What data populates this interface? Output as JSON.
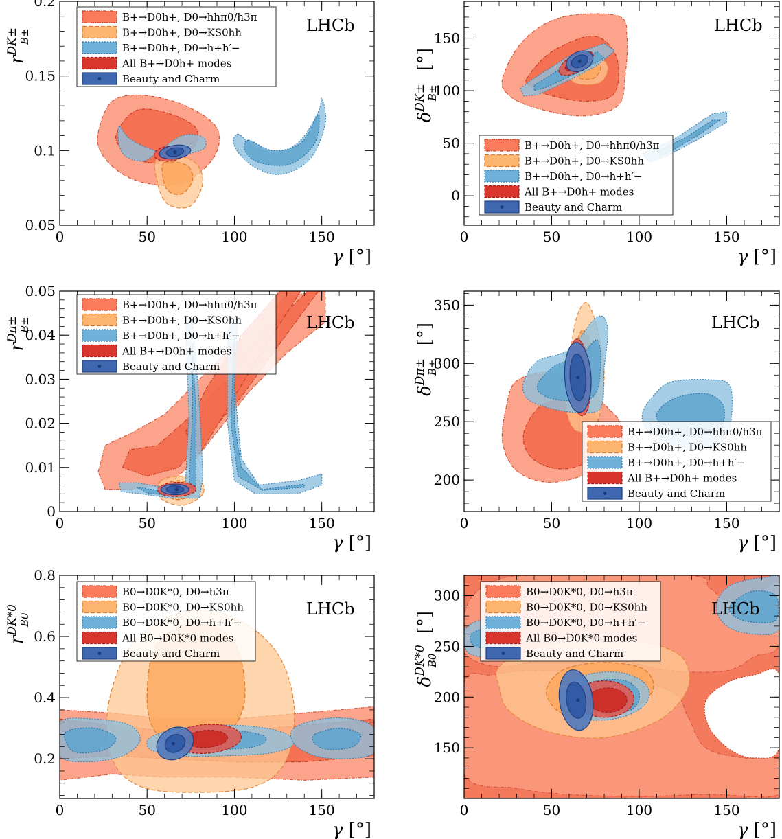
{
  "colors": {
    "red_light": "#fb9a7e",
    "red_dark": "#f36b4d",
    "orange_light": "#fec791",
    "orange_dark": "#fda75c",
    "blue_light": "#8fc1df",
    "blue_dark": "#5fa4cf",
    "crimson_light": "#e4574d",
    "crimson_dark": "#cc2a24",
    "navy_light": "#5279bd",
    "navy_dark": "#2f5aa4",
    "legend_red": "#fa7a5c",
    "legend_orange": "#fdb46f",
    "legend_blue": "#6eb0d7",
    "legend_crimson": "#d8352d",
    "legend_navy": "#3f68b0"
  },
  "chart_data": [
    {
      "type": "contour",
      "experiment_label": "LHCb",
      "xlabel": "γ [°]",
      "ylabel": "r_{B±}^{DK±}",
      "xlim": [
        0,
        180
      ],
      "ylim": [
        0.05,
        0.2
      ],
      "xticks": [
        "0",
        "50",
        "100",
        "150"
      ],
      "yticks": [
        "0.05",
        "0.1",
        "0.15",
        "0.2"
      ],
      "legend_position": "top-left",
      "legend": [
        "B+→D0h+, D0→hhπ0/h3π",
        "B+→D0h+, D0→KS0hh",
        "B+→D0h+, D0→h+h′−",
        "All B+→D0h+ modes",
        "Beauty and Charm"
      ],
      "best_fit": {
        "gamma": 66,
        "value": 0.099
      }
    },
    {
      "type": "contour",
      "experiment_label": "LHCb",
      "xlabel": "γ [°]",
      "ylabel": "δ_{B±}^{DK±} [°]",
      "xlim": [
        0,
        180
      ],
      "ylim": [
        -28,
        185
      ],
      "xticks": [
        "0",
        "50",
        "100",
        "150"
      ],
      "yticks": [
        "0",
        "50",
        "100",
        "150"
      ],
      "legend_position": "bottom-center",
      "legend": [
        "B+→D0h+, D0→hhπ0/h3π",
        "B+→D0h+, D0→KS0hh",
        "B+→D0h+, D0→h+h′−",
        "All B+→D0h+ modes",
        "Beauty and Charm"
      ],
      "best_fit": {
        "gamma": 66,
        "value": 128
      }
    },
    {
      "type": "contour",
      "experiment_label": "LHCb",
      "xlabel": "γ [°]",
      "ylabel": "r_{B±}^{Dπ±}",
      "xlim": [
        0,
        180
      ],
      "ylim": [
        0,
        0.05
      ],
      "xticks": [
        "0",
        "50",
        "100",
        "150"
      ],
      "yticks": [
        "0",
        "0.01",
        "0.02",
        "0.03",
        "0.04",
        "0.05"
      ],
      "legend_position": "top-left",
      "legend": [
        "B+→D0h+, D0→hhπ0/h3π",
        "B+→D0h+, D0→KS0hh",
        "B+→D0h+, D0→h+h′−",
        "All B+→D0h+ modes",
        "Beauty and Charm"
      ],
      "best_fit": {
        "gamma": 67,
        "value": 0.005
      }
    },
    {
      "type": "contour",
      "experiment_label": "LHCb",
      "xlabel": "γ [°]",
      "ylabel": "δ_{B±}^{Dπ±} [°]",
      "xlim": [
        0,
        180
      ],
      "ylim": [
        173,
        362
      ],
      "xticks": [
        "0",
        "50",
        "100",
        "150"
      ],
      "yticks": [
        "200",
        "250",
        "300",
        "350"
      ],
      "legend_position": "bottom-right",
      "legend": [
        "B+→D0h+, D0→hhπ0/h3π",
        "B+→D0h+, D0→KS0hh",
        "B+→D0h+, D0→h+h′−",
        "All B+→D0h+ modes",
        "Beauty and Charm"
      ],
      "best_fit": {
        "gamma": 65,
        "value": 288
      }
    },
    {
      "type": "contour",
      "experiment_label": "LHCb",
      "xlabel": "γ [°]",
      "ylabel": "r_{B0}^{DK*0}",
      "xlim": [
        0,
        180
      ],
      "ylim": [
        0.07,
        0.8
      ],
      "xticks": [
        "0",
        "50",
        "100",
        "150"
      ],
      "yticks": [
        "0.2",
        "0.4",
        "0.6",
        "0.8"
      ],
      "legend_position": "top-left",
      "legend": [
        "B0→D0K*0, D0→h3π",
        "B0→D0K*0, D0→KS0hh",
        "B0→D0K*0, D0→h+h′−",
        "All B0→D0K*0 modes",
        "Beauty and Charm"
      ],
      "best_fit": {
        "gamma": 65,
        "value": 0.25
      }
    },
    {
      "type": "contour",
      "experiment_label": "LHCb",
      "xlabel": "γ [°]",
      "ylabel": "δ_{B0}^{DK*0} [°]",
      "xlim": [
        0,
        180
      ],
      "ylim": [
        100,
        320
      ],
      "xticks": [
        "0",
        "50",
        "100",
        "150"
      ],
      "yticks": [
        "150",
        "200",
        "250",
        "300"
      ],
      "legend_position": "top-left",
      "legend": [
        "B0→D0K*0, D0→h3π",
        "B0→D0K*0, D0→KS0hh",
        "B0→D0K*0, D0→h+h′−",
        "All B0→D0K*0 modes",
        "Beauty and Charm"
      ],
      "best_fit": {
        "gamma": 65,
        "value": 197
      }
    }
  ]
}
